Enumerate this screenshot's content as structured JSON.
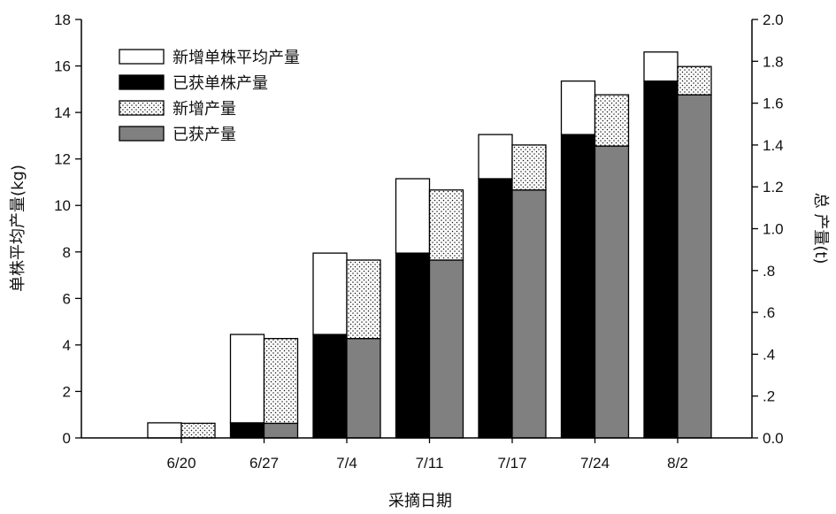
{
  "chart_data": {
    "type": "bar",
    "categories": [
      "6/20",
      "6/27",
      "7/4",
      "7/11",
      "7/17",
      "7/24",
      "8/2"
    ],
    "groups": [
      {
        "axis": "left",
        "series": [
          {
            "name": "已获单株产量",
            "fill": "black",
            "values": [
              0,
              0.65,
              4.45,
              7.95,
              11.15,
              13.05,
              15.35
            ]
          },
          {
            "name": "新增单株平均产量",
            "fill": "white",
            "values": [
              0.65,
              3.8,
              3.5,
              3.2,
              1.9,
              2.3,
              1.25
            ]
          }
        ]
      },
      {
        "axis": "right",
        "series": [
          {
            "name": "已获产量",
            "fill": "gray",
            "values": [
              0,
              0.07,
              0.475,
              0.85,
              1.185,
              1.395,
              1.64
            ]
          },
          {
            "name": "新增产量",
            "fill": "dotted",
            "values": [
              0.07,
              0.405,
              0.375,
              0.335,
              0.215,
              0.245,
              0.135
            ]
          }
        ]
      }
    ],
    "xlabel": "采摘日期",
    "ylabel_left": "单株平均产量(kg)",
    "ylabel_right": "总 产量(t)",
    "ylim_left": [
      0,
      18
    ],
    "ylim_right": [
      0,
      2.0
    ],
    "yticks_left": [
      "0",
      "2",
      "4",
      "6",
      "8",
      "10",
      "12",
      "14",
      "16",
      "18"
    ],
    "yticks_right": [
      "0.0",
      ".2",
      ".4",
      ".6",
      ".8",
      "1.0",
      "1.2",
      "1.4",
      "1.6",
      "1.8",
      "2.0"
    ],
    "legend": {
      "placement": "top-left",
      "entries": [
        {
          "label": "新增单株平均产量",
          "fill": "white"
        },
        {
          "label": "已获单株产量",
          "fill": "black"
        },
        {
          "label": "新增产量",
          "fill": "dotted"
        },
        {
          "label": "已获产量",
          "fill": "gray"
        }
      ]
    },
    "grid": false,
    "colors": {
      "black": "#000000",
      "white": "#ffffff",
      "gray": "#808080",
      "dotted_bg": "#ffffff",
      "dotted_dot": "#111111"
    }
  }
}
